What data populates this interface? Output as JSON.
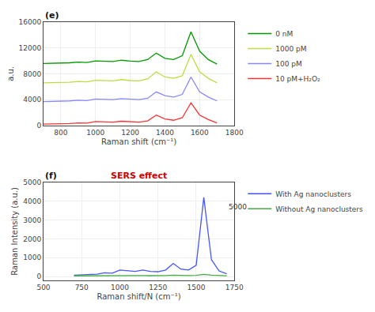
{
  "chart_data": [
    {
      "type": "line",
      "title": "(e)",
      "xlabel": "Raman shift (cm⁻¹)",
      "ylabel": "a.u.",
      "x": [
        700,
        750,
        800,
        850,
        900,
        950,
        1000,
        1050,
        1100,
        1150,
        1200,
        1250,
        1300,
        1350,
        1400,
        1450,
        1500,
        1550,
        1600,
        1650,
        1700
      ],
      "series": [
        {
          "name": "0 nM",
          "color": "#009900",
          "values": [
            9600,
            9620,
            9650,
            9700,
            9800,
            9750,
            10000,
            9950,
            9900,
            10100,
            9950,
            9900,
            10200,
            11200,
            10400,
            10200,
            10800,
            14500,
            11500,
            10200,
            9500
          ]
        },
        {
          "name": "1000 pM",
          "color": "#bbdd44",
          "values": [
            6600,
            6620,
            6650,
            6700,
            6800,
            6750,
            7000,
            6950,
            6900,
            7100,
            6950,
            6900,
            7200,
            8300,
            7500,
            7300,
            7700,
            11000,
            8300,
            7300,
            6600
          ]
        },
        {
          "name": "100 pM",
          "color": "#8888ff",
          "values": [
            3700,
            3720,
            3750,
            3800,
            3900,
            3850,
            4100,
            4050,
            4000,
            4150,
            4050,
            4000,
            4200,
            5200,
            4600,
            4400,
            4800,
            7500,
            5200,
            4400,
            3800
          ]
        },
        {
          "name": "10 pM+H₂O₂",
          "color": "#ff3333",
          "values": [
            200,
            220,
            250,
            300,
            400,
            350,
            600,
            550,
            500,
            650,
            550,
            500,
            700,
            1600,
            1000,
            800,
            1200,
            3500,
            1600,
            900,
            400
          ]
        }
      ],
      "xlim": [
        700,
        1800
      ],
      "xticks": [
        800,
        1000,
        1200,
        1400,
        1600,
        1800
      ],
      "ylim": [
        0,
        16000
      ],
      "yticks": [
        0,
        4000,
        8000,
        12000,
        16000
      ],
      "grid": true,
      "legend": "right"
    },
    {
      "type": "line",
      "title": "(f)",
      "subtitle": "SERS effect",
      "xlabel": "Raman shift/N (cm⁻¹)",
      "ylabel": "Raman Intensity (a.u.)",
      "x": [
        700,
        750,
        800,
        850,
        900,
        950,
        1000,
        1050,
        1100,
        1150,
        1200,
        1250,
        1300,
        1350,
        1400,
        1450,
        1500,
        1550,
        1600,
        1650,
        1700
      ],
      "series": [
        {
          "name": "With Ag nanoclusters",
          "color": "#4455ff",
          "values": [
            80,
            90,
            100,
            130,
            200,
            180,
            350,
            300,
            280,
            350,
            280,
            260,
            350,
            700,
            400,
            350,
            600,
            4200,
            900,
            300,
            150
          ]
        },
        {
          "name": "Without Ag nanoclusters",
          "color": "#44aa44",
          "values": [
            40,
            45,
            42,
            48,
            50,
            48,
            55,
            52,
            50,
            55,
            52,
            50,
            55,
            80,
            60,
            55,
            65,
            120,
            75,
            55,
            42
          ]
        }
      ],
      "xlim": [
        500,
        1750
      ],
      "xticks": [
        500,
        750,
        1000,
        1250,
        1500,
        1750
      ],
      "ylim": [
        -200,
        5000
      ],
      "yticks": [
        0,
        1000,
        2000,
        3000,
        4000,
        5000
      ],
      "annotations": [
        {
          "text": "5000",
          "x": 1700,
          "y": 3700
        }
      ],
      "grid": true,
      "legend": "right"
    }
  ]
}
